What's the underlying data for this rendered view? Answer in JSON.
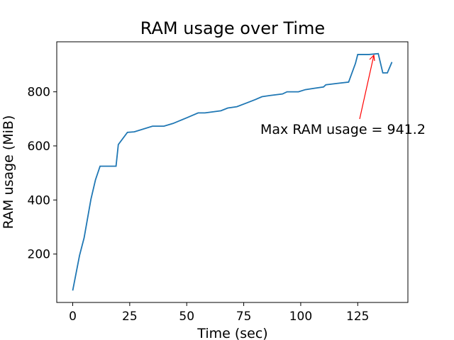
{
  "chart_data": {
    "type": "line",
    "title": "RAM usage over Time",
    "x_label": "Time (sec)",
    "y_label": "RAM usage (MiB)",
    "annotation": "Max RAM usage = 941.2",
    "annotation_color": "#ff0000",
    "x": [
      0,
      3,
      5,
      8,
      10,
      12,
      19,
      20,
      24,
      27,
      35,
      40,
      44,
      50,
      55,
      58,
      65,
      68,
      72,
      76,
      80,
      83,
      87,
      92,
      94,
      99,
      102,
      106,
      110,
      111,
      116,
      121,
      124,
      125,
      130,
      134,
      136,
      138,
      140
    ],
    "series": [
      {
        "name": "RAM usage",
        "color": "#1f77b4",
        "values": [
          65,
          195,
          260,
          403,
          475,
          525,
          525,
          605,
          650,
          652,
          673,
          673,
          683,
          704,
          722,
          722,
          730,
          740,
          745,
          758,
          771,
          782,
          787,
          792,
          800,
          800,
          808,
          813,
          818,
          826,
          831,
          836,
          905,
          938,
          938,
          941.2,
          870,
          870,
          910
        ]
      }
    ],
    "xlim": [
      -7,
      147
    ],
    "ylim": [
      21,
      985
    ],
    "xticks": [
      0,
      25,
      50,
      75,
      100,
      125
    ],
    "yticks": [
      200,
      400,
      600,
      800
    ],
    "grid": false
  }
}
